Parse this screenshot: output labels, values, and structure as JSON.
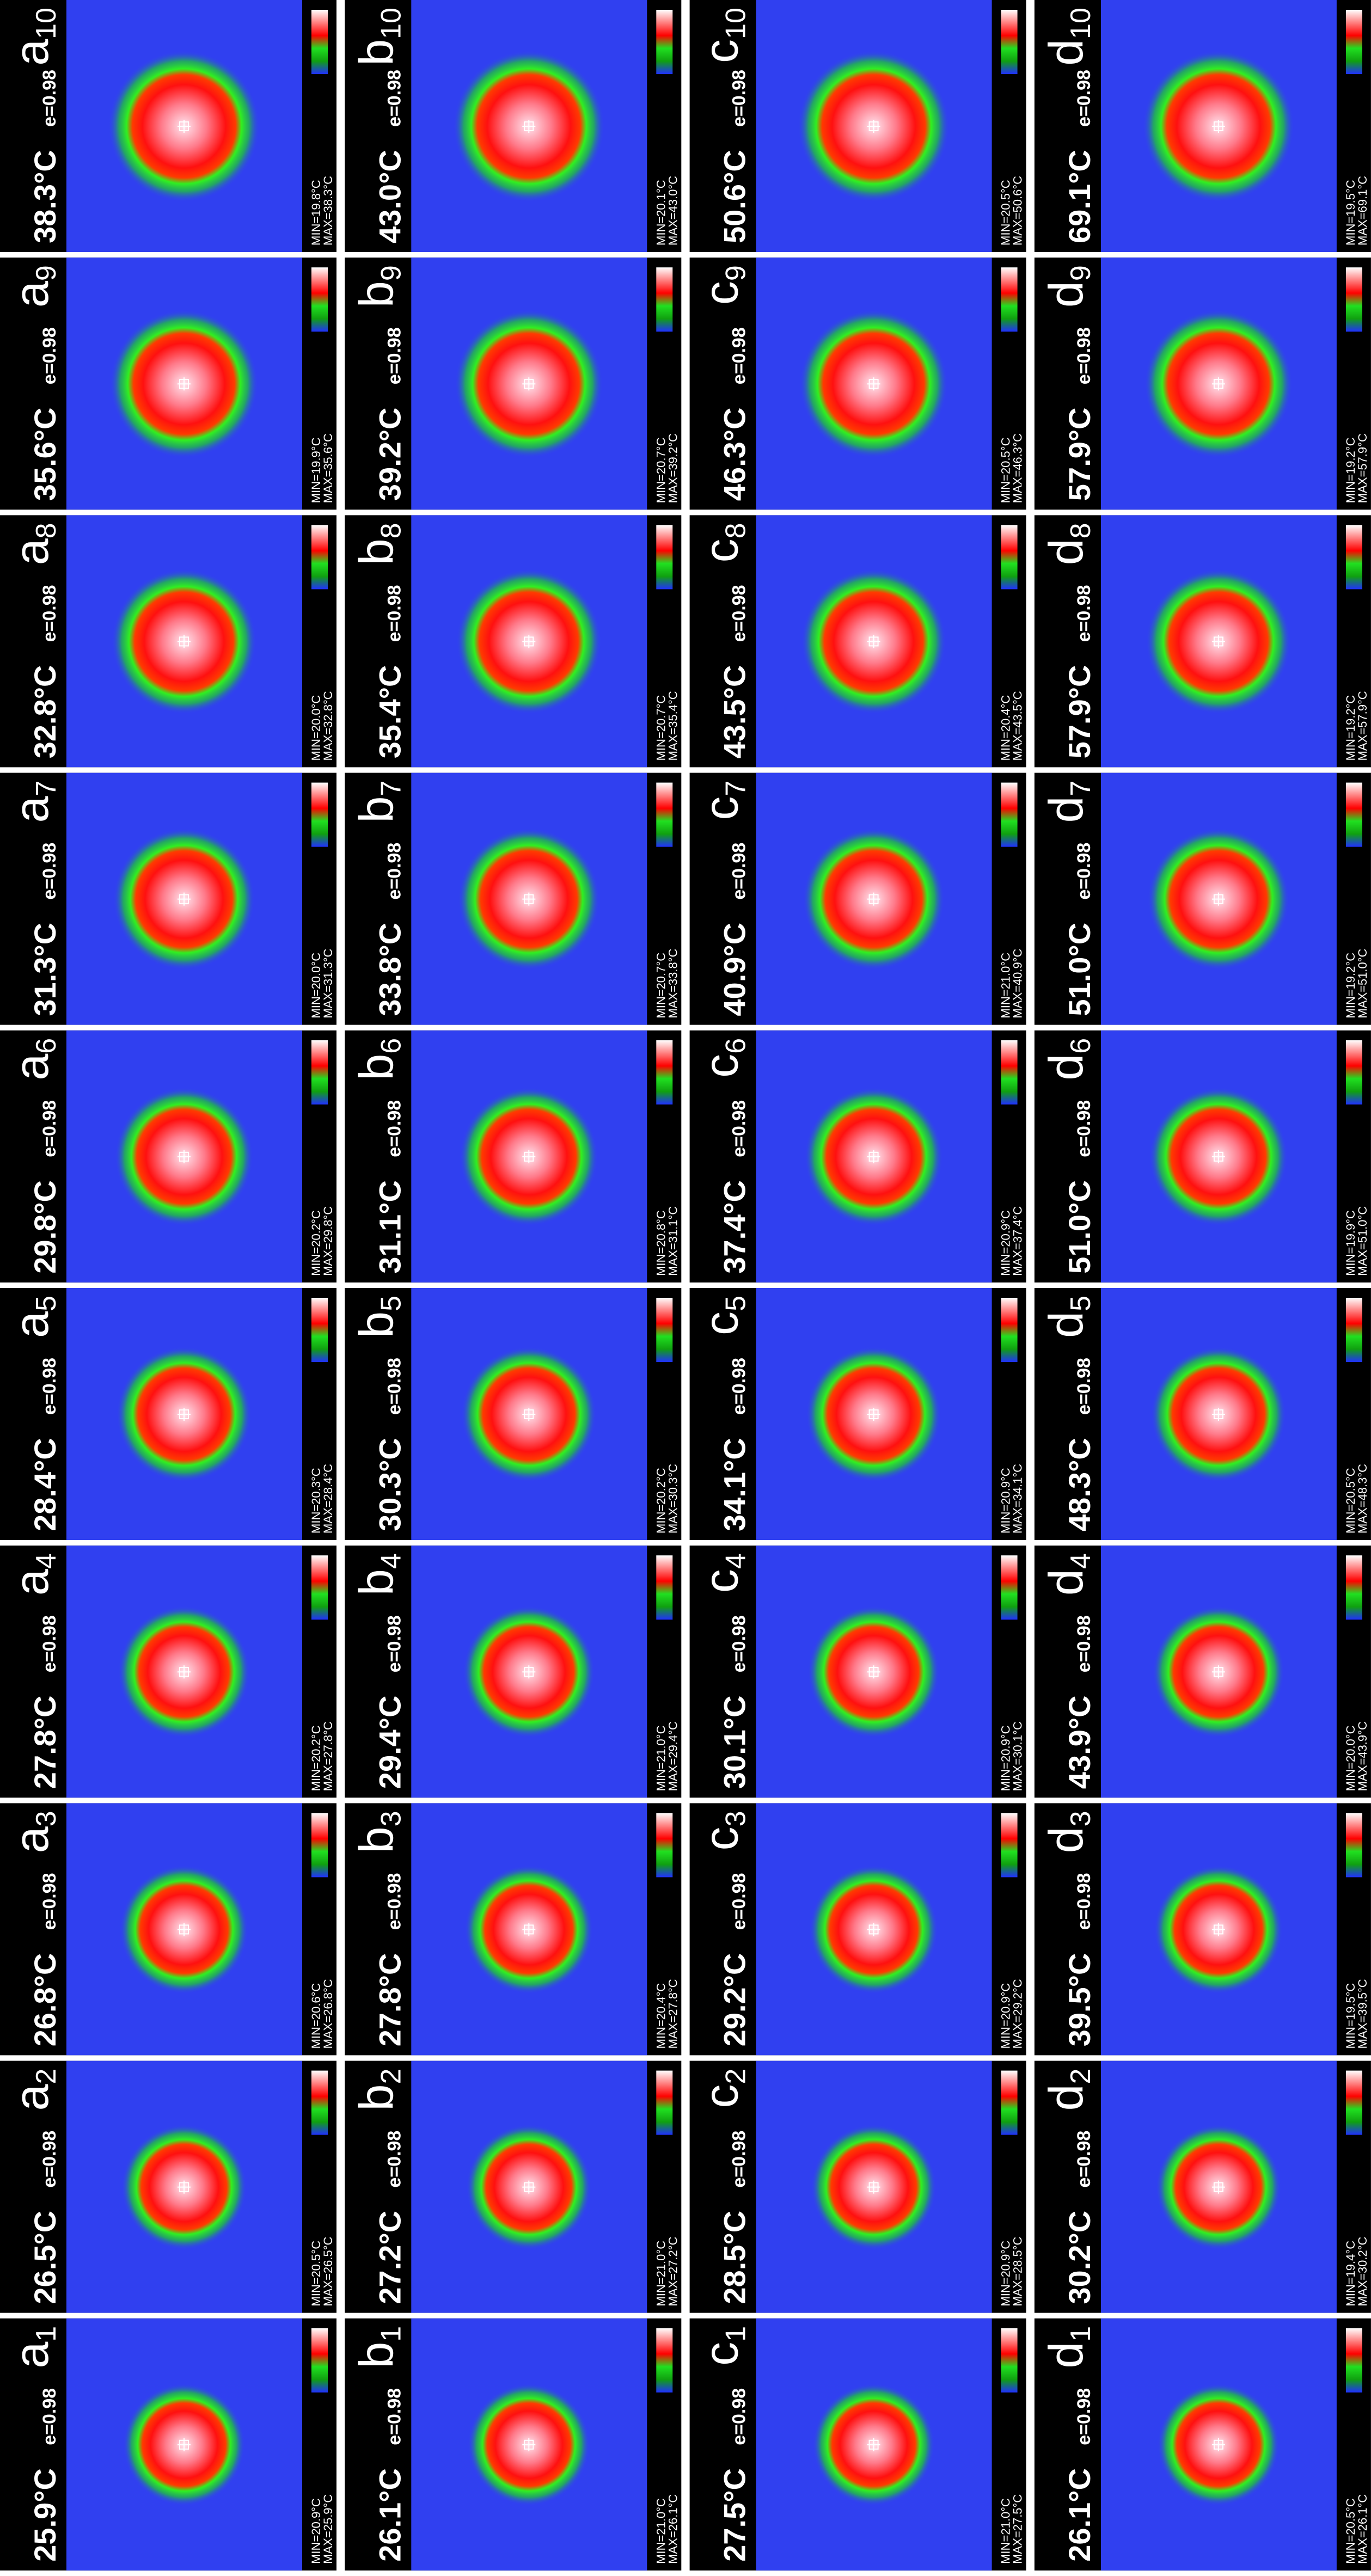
{
  "columns": [
    {
      "letter": "a",
      "panels": [
        {
          "index": "1",
          "temp": "25.9°C",
          "emissivity": "e=0.98",
          "min": "MIN=20.9°C",
          "max": "MAX=25.9°C"
        },
        {
          "index": "2",
          "temp": "26.5°C",
          "emissivity": "e=0.98",
          "min": "MIN=20.5°C",
          "max": "MAX=26.5°C"
        },
        {
          "index": "3",
          "temp": "26.8°C",
          "emissivity": "e=0.98",
          "min": "MIN=20.6°C",
          "max": "MAX=26.8°C"
        },
        {
          "index": "4",
          "temp": "27.8°C",
          "emissivity": "e=0.98",
          "min": "MIN=20.2°C",
          "max": "MAX=27.8°C"
        },
        {
          "index": "5",
          "temp": "28.4°C",
          "emissivity": "e=0.98",
          "min": "MIN=20.3°C",
          "max": "MAX=28.4°C"
        },
        {
          "index": "6",
          "temp": "29.8°C",
          "emissivity": "e=0.98",
          "min": "MIN=20.2°C",
          "max": "MAX=29.8°C"
        },
        {
          "index": "7",
          "temp": "31.3°C",
          "emissivity": "e=0.98",
          "min": "MIN=20.0°C",
          "max": "MAX=31.3°C"
        },
        {
          "index": "8",
          "temp": "32.8°C",
          "emissivity": "e=0.98",
          "min": "MIN=20.0°C",
          "max": "MAX=32.8°C"
        },
        {
          "index": "9",
          "temp": "35.6°C",
          "emissivity": "e=0.98",
          "min": "MIN=19.9°C",
          "max": "MAX=35.6°C"
        },
        {
          "index": "10",
          "temp": "38.3°C",
          "emissivity": "e=0.98",
          "min": "MIN=19.8°C",
          "max": "MAX=38.3°C"
        }
      ]
    },
    {
      "letter": "b",
      "panels": [
        {
          "index": "1",
          "temp": "26.1°C",
          "emissivity": "e=0.98",
          "min": "MIN=21.0°C",
          "max": "MAX=26.1°C"
        },
        {
          "index": "2",
          "temp": "27.2°C",
          "emissivity": "e=0.98",
          "min": "MIN=21.0°C",
          "max": "MAX=27.2°C"
        },
        {
          "index": "3",
          "temp": "27.8°C",
          "emissivity": "e=0.98",
          "min": "MIN=20.4°C",
          "max": "MAX=27.8°C"
        },
        {
          "index": "4",
          "temp": "29.4°C",
          "emissivity": "e=0.98",
          "min": "MIN=21.0°C",
          "max": "MAX=29.4°C"
        },
        {
          "index": "5",
          "temp": "30.3°C",
          "emissivity": "e=0.98",
          "min": "MIN=20.2°C",
          "max": "MAX=30.3°C"
        },
        {
          "index": "6",
          "temp": "31.1°C",
          "emissivity": "e=0.98",
          "min": "MIN=20.8°C",
          "max": "MAX=31.1°C"
        },
        {
          "index": "7",
          "temp": "33.8°C",
          "emissivity": "e=0.98",
          "min": "MIN=20.7°C",
          "max": "MAX=33.8°C"
        },
        {
          "index": "8",
          "temp": "35.4°C",
          "emissivity": "e=0.98",
          "min": "MIN=20.7°C",
          "max": "MAX=35.4°C"
        },
        {
          "index": "9",
          "temp": "39.2°C",
          "emissivity": "e=0.98",
          "min": "MIN=20.7°C",
          "max": "MAX=39.2°C"
        },
        {
          "index": "10",
          "temp": "43.0°C",
          "emissivity": "e=0.98",
          "min": "MIN=20.1°C",
          "max": "MAX=43.0°C"
        }
      ]
    },
    {
      "letter": "c",
      "panels": [
        {
          "index": "1",
          "temp": "27.5°C",
          "emissivity": "e=0.98",
          "min": "MIN=21.0°C",
          "max": "MAX=27.5°C"
        },
        {
          "index": "2",
          "temp": "28.5°C",
          "emissivity": "e=0.98",
          "min": "MIN=20.9°C",
          "max": "MAX=28.5°C"
        },
        {
          "index": "3",
          "temp": "29.2°C",
          "emissivity": "e=0.98",
          "min": "MIN=20.9°C",
          "max": "MAX=29.2°C"
        },
        {
          "index": "4",
          "temp": "30.1°C",
          "emissivity": "e=0.98",
          "min": "MIN=20.9°C",
          "max": "MAX=30.1°C"
        },
        {
          "index": "5",
          "temp": "34.1°C",
          "emissivity": "e=0.98",
          "min": "MIN=20.9°C",
          "max": "MAX=34.1°C"
        },
        {
          "index": "6",
          "temp": "37.4°C",
          "emissivity": "e=0.98",
          "min": "MIN=20.9°C",
          "max": "MAX=37.4°C"
        },
        {
          "index": "7",
          "temp": "40.9°C",
          "emissivity": "e=0.98",
          "min": "MIN=21.0°C",
          "max": "MAX=40.9°C"
        },
        {
          "index": "8",
          "temp": "43.5°C",
          "emissivity": "e=0.98",
          "min": "MIN=20.4°C",
          "max": "MAX=43.5°C"
        },
        {
          "index": "9",
          "temp": "46.3°C",
          "emissivity": "e=0.98",
          "min": "MIN=20.5°C",
          "max": "MAX=46.3°C"
        },
        {
          "index": "10",
          "temp": "50.6°C",
          "emissivity": "e=0.98",
          "min": "MIN=20.5°C",
          "max": "MAX=50.6°C"
        }
      ]
    },
    {
      "letter": "d",
      "panels": [
        {
          "index": "1",
          "temp": "26.1°C",
          "emissivity": "e=0.98",
          "min": "MIN=20.5°C",
          "max": "MAX=26.1°C"
        },
        {
          "index": "2",
          "temp": "30.2°C",
          "emissivity": "e=0.98",
          "min": "MIN=19.4°C",
          "max": "MAX=30.2°C"
        },
        {
          "index": "3",
          "temp": "39.5°C",
          "emissivity": "e=0.98",
          "min": "MIN=19.5°C",
          "max": "MAX=39.5°C"
        },
        {
          "index": "4",
          "temp": "43.9°C",
          "emissivity": "e=0.98",
          "min": "MIN=20.0°C",
          "max": "MAX=43.9°C"
        },
        {
          "index": "5",
          "temp": "48.3°C",
          "emissivity": "e=0.98",
          "min": "MIN=20.5°C",
          "max": "MAX=48.3°C"
        },
        {
          "index": "6",
          "temp": "51.0°C",
          "emissivity": "e=0.98",
          "min": "MIN=19.9°C",
          "max": "MAX=51.0°C"
        },
        {
          "index": "7",
          "temp": "51.0°C",
          "emissivity": "e=0.98",
          "min": "MIN=19.2°C",
          "max": "MAX=51.0°C"
        },
        {
          "index": "8",
          "temp": "57.9°C",
          "emissivity": "e=0.98",
          "min": "MIN=19.2°C",
          "max": "MAX=57.9°C"
        },
        {
          "index": "9",
          "temp": "57.9°C",
          "emissivity": "e=0.98",
          "min": "MIN=19.2°C",
          "max": "MAX=57.9°C"
        },
        {
          "index": "10",
          "temp": "69.1°C",
          "emissivity": "e=0.98",
          "min": "MIN=19.5°C",
          "max": "MAX=69.1°C"
        }
      ]
    }
  ]
}
